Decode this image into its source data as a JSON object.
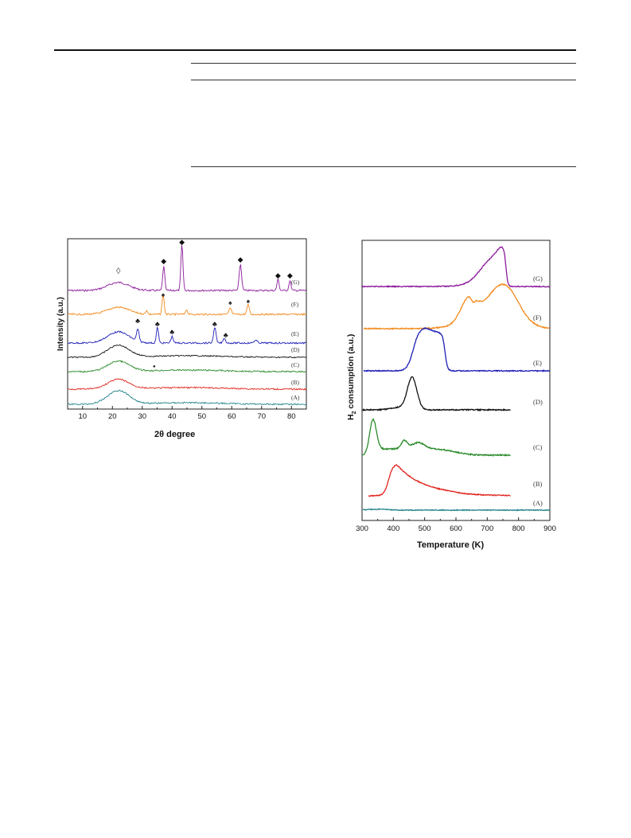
{
  "colors": {
    "G": "#8b1a9b",
    "F": "#f28a1e",
    "E": "#1f1fb8",
    "D": "#111111",
    "C": "#2a8a2a",
    "B": "#e0241c",
    "A": "#24858c"
  },
  "xrd": {
    "type": "line",
    "xlabel": "2θ  degree",
    "ylabel": "Intensity (a.u.)",
    "xlim": [
      5,
      85
    ],
    "xticks": [
      "10",
      "20",
      "30",
      "40",
      "50",
      "60",
      "70",
      "80"
    ],
    "series_labels": [
      "(G)",
      "(F)",
      "(E)",
      "(D)",
      "(C)",
      "(B)",
      "(A)"
    ],
    "markers": {
      "amorphous": "◊",
      "diamond": "◆",
      "spade": "♠",
      "club": "♣",
      "dot": "●"
    }
  },
  "tpr": {
    "type": "line",
    "xlabel": "Temperature (K)",
    "ylabel_main": "H",
    "ylabel_sub": "2",
    "ylabel_rest": " consumption (a.u.)",
    "xlim": [
      300,
      900
    ],
    "xticks": [
      "300",
      "400",
      "500",
      "600",
      "700",
      "800",
      "900"
    ],
    "series_labels": [
      "(G)",
      "(F)",
      "(E)",
      "(D)",
      "(C)",
      "(B)",
      "(A)"
    ]
  },
  "chart_data": [
    {
      "type": "line",
      "xlabel": "2θ  degree",
      "ylabel": "Intensity (a.u.)",
      "xlim": [
        5,
        85
      ],
      "series": [
        {
          "name": "(G)",
          "peaks_2theta": [
            22,
            37.2,
            43.3,
            62.9,
            75.5,
            79.5
          ]
        },
        {
          "name": "(F)",
          "peaks_2theta": [
            22,
            31.5,
            37,
            44.8,
            59.5,
            65.5
          ]
        },
        {
          "name": "(E)",
          "peaks_2theta": [
            22,
            28.5,
            35.1,
            40,
            54.3,
            57.5
          ]
        },
        {
          "name": "(D)",
          "peaks_2theta": [
            22
          ]
        },
        {
          "name": "(C)",
          "peaks_2theta": [
            22,
            34
          ]
        },
        {
          "name": "(B)",
          "peaks_2theta": [
            22
          ]
        },
        {
          "name": "(A)",
          "peaks_2theta": [
            22
          ]
        }
      ]
    },
    {
      "type": "line",
      "xlabel": "Temperature (K)",
      "ylabel": "H2 consumption (a.u.)",
      "xlim": [
        300,
        900
      ],
      "series": [
        {
          "name": "(G)",
          "peak_temperature_K": [
            750
          ]
        },
        {
          "name": "(F)",
          "peak_temperature_K": [
            640,
            750
          ]
        },
        {
          "name": "(E)",
          "peak_temperature_K": [
            520
          ]
        },
        {
          "name": "(D)",
          "peak_temperature_K": [
            460
          ]
        },
        {
          "name": "(C)",
          "peak_temperature_K": [
            335,
            435,
            475
          ]
        },
        {
          "name": "(B)",
          "peak_temperature_K": [
            410
          ]
        },
        {
          "name": "(A)",
          "peak_temperature_K": []
        }
      ]
    }
  ]
}
